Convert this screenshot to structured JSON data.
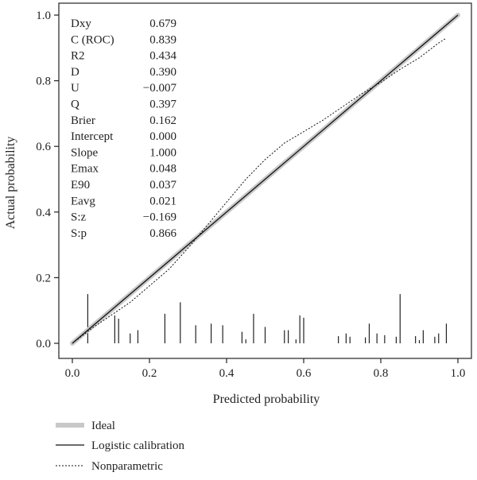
{
  "chart_data": {
    "type": "line",
    "xlabel": "Predicted probability",
    "ylabel": "Actual probability",
    "xlim": [
      0,
      1
    ],
    "ylim": [
      0,
      1
    ],
    "x_ticks": [
      "0.0",
      "0.2",
      "0.4",
      "0.6",
      "0.8",
      "1.0"
    ],
    "y_ticks": [
      "0.0",
      "0.2",
      "0.4",
      "0.6",
      "0.8",
      "1.0"
    ],
    "grid": false,
    "legend_position": "bottom-left",
    "stats": [
      {
        "label": "Dxy",
        "value": "0.679"
      },
      {
        "label": "C (ROC)",
        "value": "0.839"
      },
      {
        "label": "R2",
        "value": "0.434"
      },
      {
        "label": "D",
        "value": "0.390"
      },
      {
        "label": "U",
        "value": "−0.007"
      },
      {
        "label": "Q",
        "value": "0.397"
      },
      {
        "label": "Brier",
        "value": "0.162"
      },
      {
        "label": "Intercept",
        "value": "0.000"
      },
      {
        "label": "Slope",
        "value": "1.000"
      },
      {
        "label": "Emax",
        "value": "0.048"
      },
      {
        "label": "E90",
        "value": "0.037"
      },
      {
        "label": "Eavg",
        "value": "0.021"
      },
      {
        "label": "S:z",
        "value": "−0.169"
      },
      {
        "label": "S:p",
        "value": "0.866"
      }
    ],
    "series": [
      {
        "name": "Ideal",
        "style": "thick-gray",
        "color": "#c8c8c8",
        "x": [
          0,
          1
        ],
        "y": [
          0,
          1
        ]
      },
      {
        "name": "Logistic calibration",
        "style": "solid",
        "color": "#111111",
        "x": [
          0,
          1
        ],
        "y": [
          0,
          1
        ]
      },
      {
        "name": "Nonparametric",
        "style": "dotted",
        "color": "#111111",
        "x": [
          0.0,
          0.05,
          0.1,
          0.15,
          0.2,
          0.25,
          0.3,
          0.35,
          0.4,
          0.45,
          0.5,
          0.55,
          0.6,
          0.65,
          0.7,
          0.75,
          0.8,
          0.85,
          0.9,
          0.95,
          0.97
        ],
        "y": [
          0.0,
          0.045,
          0.085,
          0.125,
          0.175,
          0.225,
          0.29,
          0.36,
          0.43,
          0.5,
          0.56,
          0.61,
          0.645,
          0.68,
          0.72,
          0.76,
          0.795,
          0.835,
          0.87,
          0.915,
          0.93
        ]
      }
    ],
    "rug": [
      {
        "x": 0.04,
        "h": 0.15
      },
      {
        "x": 0.11,
        "h": 0.085
      },
      {
        "x": 0.12,
        "h": 0.075
      },
      {
        "x": 0.15,
        "h": 0.03
      },
      {
        "x": 0.17,
        "h": 0.04
      },
      {
        "x": 0.24,
        "h": 0.09
      },
      {
        "x": 0.28,
        "h": 0.125
      },
      {
        "x": 0.32,
        "h": 0.055
      },
      {
        "x": 0.36,
        "h": 0.06
      },
      {
        "x": 0.39,
        "h": 0.055
      },
      {
        "x": 0.44,
        "h": 0.035
      },
      {
        "x": 0.45,
        "h": 0.012
      },
      {
        "x": 0.47,
        "h": 0.09
      },
      {
        "x": 0.5,
        "h": 0.05
      },
      {
        "x": 0.55,
        "h": 0.04
      },
      {
        "x": 0.56,
        "h": 0.04
      },
      {
        "x": 0.58,
        "h": 0.012
      },
      {
        "x": 0.59,
        "h": 0.085
      },
      {
        "x": 0.6,
        "h": 0.078
      },
      {
        "x": 0.69,
        "h": 0.022
      },
      {
        "x": 0.71,
        "h": 0.03
      },
      {
        "x": 0.72,
        "h": 0.02
      },
      {
        "x": 0.76,
        "h": 0.018
      },
      {
        "x": 0.77,
        "h": 0.06
      },
      {
        "x": 0.79,
        "h": 0.03
      },
      {
        "x": 0.81,
        "h": 0.025
      },
      {
        "x": 0.84,
        "h": 0.02
      },
      {
        "x": 0.85,
        "h": 0.15
      },
      {
        "x": 0.89,
        "h": 0.022
      },
      {
        "x": 0.9,
        "h": 0.01
      },
      {
        "x": 0.91,
        "h": 0.04
      },
      {
        "x": 0.94,
        "h": 0.02
      },
      {
        "x": 0.95,
        "h": 0.03
      },
      {
        "x": 0.97,
        "h": 0.06
      }
    ]
  }
}
